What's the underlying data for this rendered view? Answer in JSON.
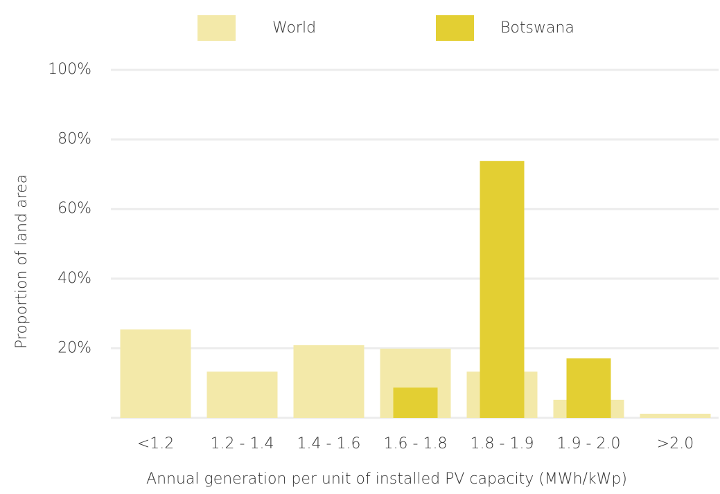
{
  "chart_data": {
    "type": "bar",
    "categories": [
      "<1.2",
      "1.2 - 1.4",
      "1.4 - 1.6",
      "1.6 - 1.8",
      "1.8 - 1.9",
      "1.9 - 2.0",
      ">2.0"
    ],
    "series": [
      {
        "name": "World",
        "color": "#f3e9a9",
        "values": [
          25.4,
          13.3,
          20.9,
          19.9,
          13.3,
          5.2,
          1.2
        ]
      },
      {
        "name": "Botswana",
        "color": "#e3cf33",
        "values": [
          0,
          0,
          0,
          8.7,
          73.8,
          17.1,
          0
        ]
      }
    ],
    "xlabel": "Annual generation per unit of installed PV capacity (MWh/kWp)",
    "ylabel": "Proportion of land area",
    "ylim": [
      0,
      100
    ],
    "yticks": [
      {
        "value": 20,
        "label": "20%"
      },
      {
        "value": 40,
        "label": "40%"
      },
      {
        "value": 60,
        "label": "60%"
      },
      {
        "value": 80,
        "label": "80%"
      },
      {
        "value": 100,
        "label": "100%"
      }
    ],
    "grid": true,
    "legend": "top"
  }
}
